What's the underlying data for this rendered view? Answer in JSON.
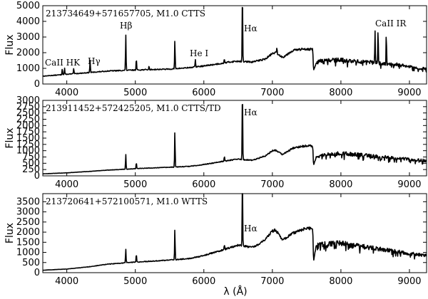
{
  "chart_data": [
    {
      "type": "line",
      "title": "213734649+571657705, M1.0 CTTS",
      "xlabel": "",
      "ylabel": "Flux",
      "xlim": [
        3650,
        9250
      ],
      "ylim": [
        0,
        5000
      ],
      "xticks": [
        4000,
        5000,
        6000,
        7000,
        8000,
        9000
      ],
      "yticks": [
        0,
        1000,
        2000,
        3000,
        4000,
        5000
      ],
      "annotations": [
        {
          "text": "CaII HK",
          "x": 3930
        },
        {
          "text": "Hγ",
          "x": 4340
        },
        {
          "text": "Hβ",
          "x": 4861
        },
        {
          "text": "He I",
          "x": 5876
        },
        {
          "text": "Hα",
          "x": 6563
        },
        {
          "text": "CaII IR",
          "x": 8600
        }
      ],
      "continuum": [
        [
          3650,
          500
        ],
        [
          4000,
          620
        ],
        [
          4300,
          720
        ],
        [
          4600,
          830
        ],
        [
          4900,
          880
        ],
        [
          5200,
          920
        ],
        [
          5500,
          950
        ],
        [
          5800,
          1050
        ],
        [
          6000,
          1150
        ],
        [
          6200,
          1280
        ],
        [
          6400,
          1420
        ],
        [
          6500,
          1460
        ],
        [
          6700,
          1400
        ],
        [
          6800,
          1500
        ],
        [
          6900,
          1600
        ],
        [
          7000,
          1950
        ],
        [
          7050,
          2000
        ],
        [
          7150,
          1700
        ],
        [
          7300,
          2150
        ],
        [
          7500,
          2250
        ],
        [
          7590,
          2200
        ],
        [
          7600,
          850
        ],
        [
          7640,
          1350
        ],
        [
          7700,
          1450
        ],
        [
          8000,
          1550
        ],
        [
          8200,
          1450
        ],
        [
          8400,
          1400
        ],
        [
          8600,
          1300
        ],
        [
          8800,
          1250
        ],
        [
          9000,
          1100
        ],
        [
          9250,
          950
        ]
      ],
      "emission": [
        [
          3934,
          400
        ],
        [
          3968,
          400
        ],
        [
          4101,
          350
        ],
        [
          4340,
          800
        ],
        [
          4861,
          2300
        ],
        [
          5015,
          750
        ],
        [
          5200,
          200
        ],
        [
          5577,
          1800
        ],
        [
          5876,
          500
        ],
        [
          6300,
          250
        ],
        [
          6563,
          4500
        ],
        [
          7065,
          350
        ],
        [
          8498,
          2000
        ],
        [
          8542,
          2200
        ],
        [
          8662,
          1800
        ]
      ]
    },
    {
      "type": "line",
      "title": "213911452+572425205, M1.0 CTTS/TD",
      "xlabel": "",
      "ylabel": "Flux",
      "xlim": [
        3650,
        9250
      ],
      "ylim": [
        0,
        3000
      ],
      "xticks": [
        4000,
        5000,
        6000,
        7000,
        8000,
        9000
      ],
      "yticks": [
        0,
        250,
        500,
        750,
        1000,
        1250,
        1500,
        1750,
        2000,
        2250,
        2500,
        2750,
        3000
      ],
      "annotations": [
        {
          "text": "Hα",
          "x": 6563
        }
      ],
      "continuum": [
        [
          3650,
          80
        ],
        [
          4000,
          120
        ],
        [
          4300,
          170
        ],
        [
          4600,
          230
        ],
        [
          4900,
          270
        ],
        [
          5200,
          310
        ],
        [
          5500,
          340
        ],
        [
          5800,
          380
        ],
        [
          6000,
          450
        ],
        [
          6200,
          540
        ],
        [
          6400,
          630
        ],
        [
          6500,
          660
        ],
        [
          6700,
          620
        ],
        [
          6800,
          700
        ],
        [
          6900,
          800
        ],
        [
          7000,
          1000
        ],
        [
          7050,
          1020
        ],
        [
          7150,
          850
        ],
        [
          7300,
          1100
        ],
        [
          7500,
          1200
        ],
        [
          7590,
          1180
        ],
        [
          7600,
          420
        ],
        [
          7640,
          750
        ],
        [
          7700,
          800
        ],
        [
          8000,
          900
        ],
        [
          8200,
          850
        ],
        [
          8400,
          800
        ],
        [
          8600,
          750
        ],
        [
          8800,
          700
        ],
        [
          9000,
          650
        ],
        [
          9250,
          600
        ]
      ],
      "emission": [
        [
          4861,
          600
        ],
        [
          5015,
          250
        ],
        [
          5577,
          1400
        ],
        [
          6563,
          2900
        ],
        [
          6300,
          200
        ]
      ]
    },
    {
      "type": "line",
      "title": "213720641+572100571, M1.0 WTTS",
      "xlabel": "λ (Å)",
      "ylabel": "Flux",
      "xlim": [
        3650,
        9250
      ],
      "ylim": [
        0,
        3900
      ],
      "xticks": [
        4000,
        5000,
        6000,
        7000,
        8000,
        9000
      ],
      "yticks": [
        0,
        500,
        1000,
        1500,
        2000,
        2500,
        3000,
        3500
      ],
      "annotations": [
        {
          "text": "Hα",
          "x": 6563
        }
      ],
      "continuum": [
        [
          3650,
          120
        ],
        [
          4000,
          180
        ],
        [
          4300,
          280
        ],
        [
          4600,
          420
        ],
        [
          4900,
          500
        ],
        [
          5200,
          560
        ],
        [
          5500,
          620
        ],
        [
          5800,
          700
        ],
        [
          6000,
          850
        ],
        [
          6200,
          1050
        ],
        [
          6400,
          1250
        ],
        [
          6500,
          1350
        ],
        [
          6700,
          1250
        ],
        [
          6800,
          1400
        ],
        [
          6900,
          1650
        ],
        [
          7000,
          2050
        ],
        [
          7050,
          2100
        ],
        [
          7150,
          1600
        ],
        [
          7300,
          1950
        ],
        [
          7500,
          2200
        ],
        [
          7590,
          2150
        ],
        [
          7600,
          550
        ],
        [
          7640,
          1350
        ],
        [
          7700,
          1400
        ],
        [
          8000,
          1450
        ],
        [
          8200,
          1350
        ],
        [
          8400,
          1250
        ],
        [
          8600,
          1150
        ],
        [
          8800,
          1050
        ],
        [
          9000,
          950
        ],
        [
          9250,
          850
        ]
      ],
      "emission": [
        [
          4861,
          700
        ],
        [
          5015,
          400
        ],
        [
          5577,
          1500
        ],
        [
          6563,
          3500
        ],
        [
          6300,
          250
        ]
      ]
    }
  ]
}
